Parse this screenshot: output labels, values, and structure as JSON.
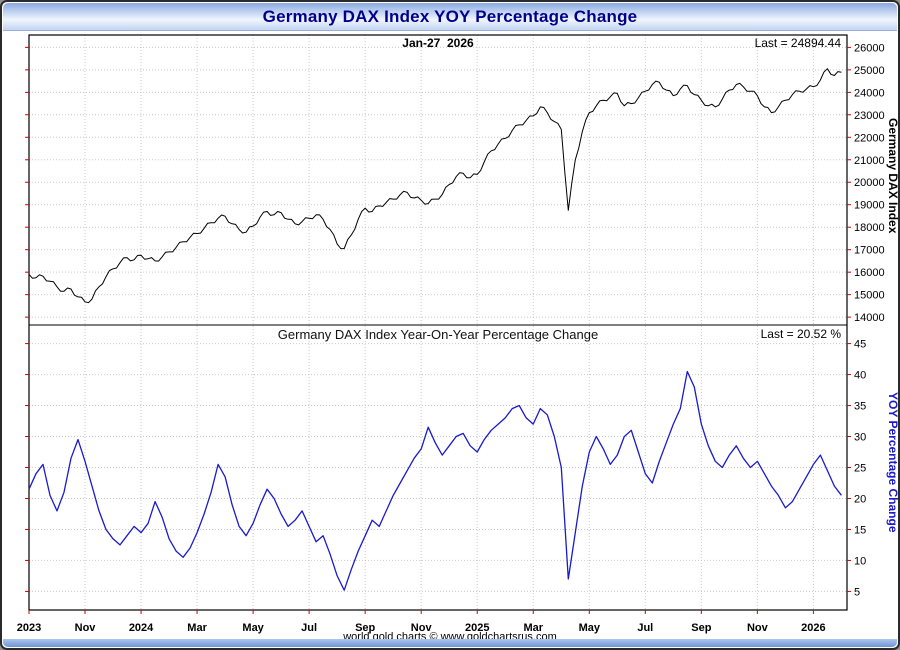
{
  "window": {
    "title": "Germany DAX Index YOY Percentage Change",
    "footer": "world gold charts © www.goldchartsrus.com"
  },
  "colors": {
    "grid": "#c9c9c9",
    "axis_tick": "#cc0000",
    "border": "#000000",
    "title_text": "#00008b",
    "price_line": "#000000",
    "yoy_line": "#1a1acd"
  },
  "x_axis": {
    "xlim": [
      0,
      29.2
    ],
    "tick_months": [
      0,
      2,
      4,
      6,
      8,
      10,
      12,
      14,
      16,
      18,
      20,
      22,
      24,
      26,
      28
    ],
    "tick_labels": [
      "2023",
      "Nov",
      "2024",
      "Mar",
      "May",
      "Jul",
      "Sep",
      "Nov",
      "2025",
      "Mar",
      "May",
      "Jul",
      "Sep",
      "Nov",
      "2026"
    ]
  },
  "chart_data": [
    {
      "type": "line",
      "name": "germany-dax-index",
      "ylabel": "Germany DAX Index",
      "color": "#000000",
      "stroke_width": 1,
      "rough": 2.2,
      "ylim": [
        13650,
        26550
      ],
      "yticks": [
        14000,
        15000,
        16000,
        17000,
        18000,
        19000,
        20000,
        21000,
        22000,
        23000,
        24000,
        25000,
        26000
      ],
      "annotations": {
        "date": "Jan-27  2026",
        "last": "Last = 24894.44"
      },
      "last_value": 24894.44,
      "x_start": 0,
      "x_step": 0.25,
      "values": [
        15900,
        15750,
        15820,
        15600,
        15350,
        15150,
        15250,
        14900,
        14680,
        14800,
        15350,
        15800,
        16150,
        16420,
        16650,
        16550,
        16750,
        16600,
        16500,
        16680,
        16900,
        17100,
        17350,
        17550,
        17720,
        17950,
        18200,
        18400,
        18490,
        18150,
        17900,
        17780,
        18050,
        18450,
        18700,
        18550,
        18650,
        18350,
        18150,
        18250,
        18400,
        18550,
        18350,
        17900,
        17250,
        17050,
        17650,
        18350,
        18850,
        18700,
        18950,
        19100,
        19250,
        19450,
        19550,
        19300,
        19200,
        19050,
        19250,
        19450,
        19900,
        20250,
        20400,
        20200,
        20350,
        20900,
        21400,
        21700,
        21950,
        22300,
        22550,
        22750,
        22950,
        23350,
        23100,
        22700,
        22350,
        18750,
        21000,
        22250,
        23100,
        23400,
        23650,
        23800,
        23950,
        23400,
        23500,
        23750,
        24050,
        24350,
        24450,
        24100,
        23850,
        24150,
        24300,
        23900,
        23650,
        23400,
        23350,
        23700,
        24100,
        24350,
        24250,
        24050,
        23850,
        23350,
        23100,
        23350,
        23650,
        23900,
        24050,
        24150,
        24250,
        24550,
        25050,
        24750,
        24894.44
      ]
    },
    {
      "type": "line",
      "name": "dax-yoy-percentage-change",
      "title": "Germany DAX Index Year-On-Year Percentage Change",
      "ylabel": "YOY Percentage Change",
      "color": "#1a1acd",
      "stroke_width": 1.3,
      "ylim": [
        2,
        48
      ],
      "yticks": [
        5,
        10,
        15,
        20,
        25,
        30,
        35,
        40,
        45
      ],
      "annotations": {
        "last": "Last = 20.52 %"
      },
      "last_value": 20.52,
      "x_start": 0,
      "x_step": 0.25,
      "values": [
        21.5,
        24.0,
        25.5,
        20.5,
        18.0,
        21.0,
        26.5,
        29.5,
        26.0,
        22.0,
        18.0,
        15.0,
        13.5,
        12.5,
        14.0,
        15.5,
        14.5,
        16.0,
        19.5,
        17.0,
        13.5,
        11.5,
        10.5,
        12.0,
        14.5,
        17.5,
        21.0,
        25.5,
        23.5,
        19.0,
        15.5,
        14.0,
        16.0,
        19.0,
        21.5,
        20.0,
        17.5,
        15.5,
        16.5,
        18.0,
        15.5,
        13.0,
        14.0,
        11.0,
        7.5,
        5.2,
        8.5,
        11.5,
        14.0,
        16.5,
        15.5,
        18.0,
        20.5,
        22.5,
        24.5,
        26.5,
        28.0,
        31.5,
        29.0,
        27.0,
        28.5,
        30.0,
        30.5,
        28.5,
        27.5,
        29.5,
        31.0,
        32.0,
        33.0,
        34.5,
        35.0,
        33.0,
        32.0,
        34.5,
        33.5,
        30.0,
        25.0,
        7.0,
        14.5,
        22.0,
        27.5,
        30.0,
        28.0,
        25.5,
        27.0,
        30.0,
        31.0,
        27.5,
        24.0,
        22.5,
        26.0,
        29.0,
        32.0,
        34.5,
        40.5,
        38.0,
        32.0,
        28.5,
        26.0,
        25.0,
        27.0,
        28.5,
        26.5,
        25.0,
        26.0,
        24.0,
        22.0,
        20.5,
        18.5,
        19.5,
        21.5,
        23.5,
        25.5,
        27.0,
        24.5,
        22.0,
        20.52
      ]
    }
  ]
}
